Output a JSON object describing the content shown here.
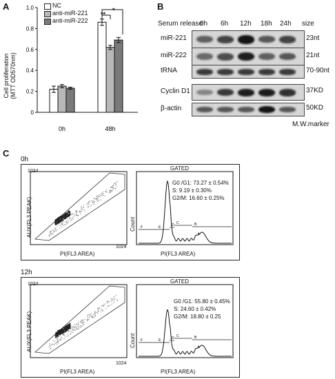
{
  "panel_labels": {
    "a": "A",
    "b": "B",
    "c": "C"
  },
  "panel_a": {
    "ylabel_line1": "Cell proliferation",
    "ylabel_line2": "(MTT OD570nm)",
    "legend": [
      "NC",
      "anti-miR-221",
      "anti-miR-222"
    ],
    "significance": [
      "**",
      "*"
    ],
    "chart_data": {
      "type": "bar",
      "categories": [
        "0h",
        "48h"
      ],
      "series": [
        {
          "name": "NC",
          "values": [
            0.22,
            0.86
          ],
          "errors": [
            0.03,
            0.03
          ],
          "color": "#ffffff"
        },
        {
          "name": "anti-miR-221",
          "values": [
            0.25,
            0.62
          ],
          "errors": [
            0.015,
            0.02
          ],
          "color": "#b8b8b8"
        },
        {
          "name": "anti-miR-222",
          "values": [
            0.23,
            0.69
          ],
          "errors": [
            0.01,
            0.025
          ],
          "color": "#7a7a7a"
        }
      ],
      "ylim": [
        0,
        1.0
      ],
      "yticks": [
        "0",
        "0.2",
        "0.4",
        "0.6",
        "0.8",
        "1.0"
      ]
    }
  },
  "panel_b": {
    "header": "Serum release",
    "timepoints": [
      "0h",
      "6h",
      "12h",
      "18h",
      "24h"
    ],
    "size_header": "size",
    "rows": [
      {
        "label": "miR-221",
        "size": "23nt",
        "intensity": [
          0.55,
          0.7,
          0.95,
          0.6,
          0.7
        ]
      },
      {
        "label": "miR-222",
        "size": "21nt",
        "intensity": [
          0.5,
          0.65,
          0.9,
          0.55,
          0.6
        ]
      },
      {
        "label": "tRNA",
        "size": "70-90nt",
        "intensity": [
          0.75,
          0.75,
          0.75,
          0.75,
          0.75
        ]
      },
      {
        "label": "Cyclin D1",
        "size": "37KD",
        "intensity": [
          0.35,
          0.75,
          0.9,
          0.9,
          0.8
        ]
      },
      {
        "label": "β-actin",
        "size": "50KD",
        "intensity": [
          0.6,
          0.6,
          0.6,
          0.95,
          0.6
        ]
      }
    ],
    "footer": "M.W.marker"
  },
  "panel_c": {
    "rows": [
      {
        "time": "0h",
        "gated": "GATED",
        "stats": [
          "G0 /G1: 73.27 ± 0.54%",
          "S: 9.19 ± 0.30%",
          "G2/M: 16.60 ± 0.25%"
        ]
      },
      {
        "time": "12h",
        "gated": "GATED",
        "stats": [
          "G0 /G1: 55.80 ± 0.45%",
          "S: 24.60 ± 0.42%",
          "G2/M: 18.80 ± 0.25"
        ]
      }
    ],
    "scatter_ylabel": "AUX(FL3 PEAK)",
    "scatter_xlabel": "PI(FL3 AREA)",
    "axis_max": "1024",
    "hist_ylabel": "Count",
    "hist_xlabel": "PI(FL3 AREA)",
    "gate_letters": [
      "F",
      "E",
      "D",
      "C",
      "B"
    ]
  }
}
